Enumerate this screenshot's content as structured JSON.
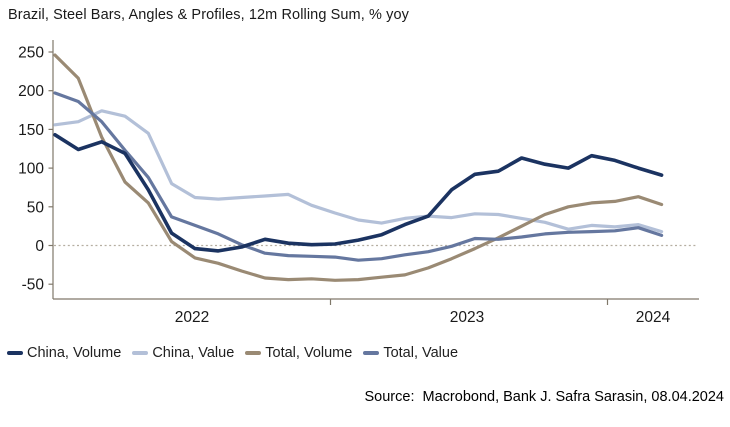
{
  "title": "Brazil, Steel Bars, Angles & Profiles, 12m Rolling Sum, % yoy",
  "source": "Source:  Macrobond, Bank J. Safra Sarasin, 08.04.2024",
  "colors": {
    "china_volume": "#1B3361",
    "china_value": "#B3C0D8",
    "total_volume": "#9A8A74",
    "total_value": "#65779F",
    "axis": "#80786A",
    "zero_line": "#B5AEA1",
    "text": "#1A1A1A"
  },
  "legend": [
    {
      "label": "China, Volume",
      "color": "#1B3361"
    },
    {
      "label": "China, Value",
      "color": "#B3C0D8"
    },
    {
      "label": "Total, Volume",
      "color": "#9A8A74"
    },
    {
      "label": "Total, Value",
      "color": "#65779F"
    }
  ],
  "chart_data": {
    "type": "line",
    "title": "Brazil, Steel Bars, Angles & Profiles, 12m Rolling Sum, % yoy",
    "xlabel": "",
    "ylabel": "% yoy",
    "ylim": [
      -50,
      250
    ],
    "yticks": [
      -50,
      0,
      50,
      100,
      150,
      200,
      250
    ],
    "grid": false,
    "zero_line": "dotted",
    "legend_position": "bottom",
    "x_tick_labels": [
      "2022",
      "2023",
      "2024"
    ],
    "x": [
      "2022-01",
      "2022-02",
      "2022-03",
      "2022-04",
      "2022-05",
      "2022-06",
      "2022-07",
      "2022-08",
      "2022-09",
      "2022-10",
      "2022-11",
      "2022-12",
      "2023-01",
      "2023-02",
      "2023-03",
      "2023-04",
      "2023-05",
      "2023-06",
      "2023-07",
      "2023-08",
      "2023-09",
      "2023-10",
      "2023-11",
      "2023-12",
      "2024-01",
      "2024-02",
      "2024-03"
    ],
    "series": [
      {
        "name": "China, Value",
        "color": "#B3C0D8",
        "values": [
          156,
          160,
          174,
          167,
          145,
          80,
          62,
          60,
          62,
          64,
          66,
          52,
          42,
          33,
          29,
          35,
          38,
          36,
          41,
          40,
          35,
          30,
          21,
          26,
          24,
          27,
          18
        ]
      },
      {
        "name": "Total, Volume",
        "color": "#9A8A74",
        "values": [
          246,
          216,
          140,
          82,
          55,
          5,
          -16,
          -23,
          -33,
          -42,
          -44,
          -43,
          -45,
          -44,
          -41,
          -38,
          -29,
          -17,
          -4,
          10,
          25,
          40,
          50,
          55,
          57,
          63,
          53
        ]
      },
      {
        "name": "Total, Value",
        "color": "#65779F",
        "values": [
          197,
          186,
          160,
          123,
          88,
          37,
          26,
          15,
          1,
          -10,
          -13,
          -14,
          -15,
          -19,
          -17,
          -12,
          -8,
          -1,
          9,
          8,
          11,
          15,
          17,
          18,
          19,
          23,
          13
        ]
      },
      {
        "name": "China, Volume",
        "color": "#1B3361",
        "values": [
          143,
          124,
          134,
          119,
          72,
          16,
          -4,
          -7,
          -2,
          8,
          3,
          1,
          2,
          7,
          14,
          27,
          38,
          72,
          92,
          96,
          113,
          105,
          100,
          116,
          110,
          100,
          91
        ]
      }
    ]
  }
}
